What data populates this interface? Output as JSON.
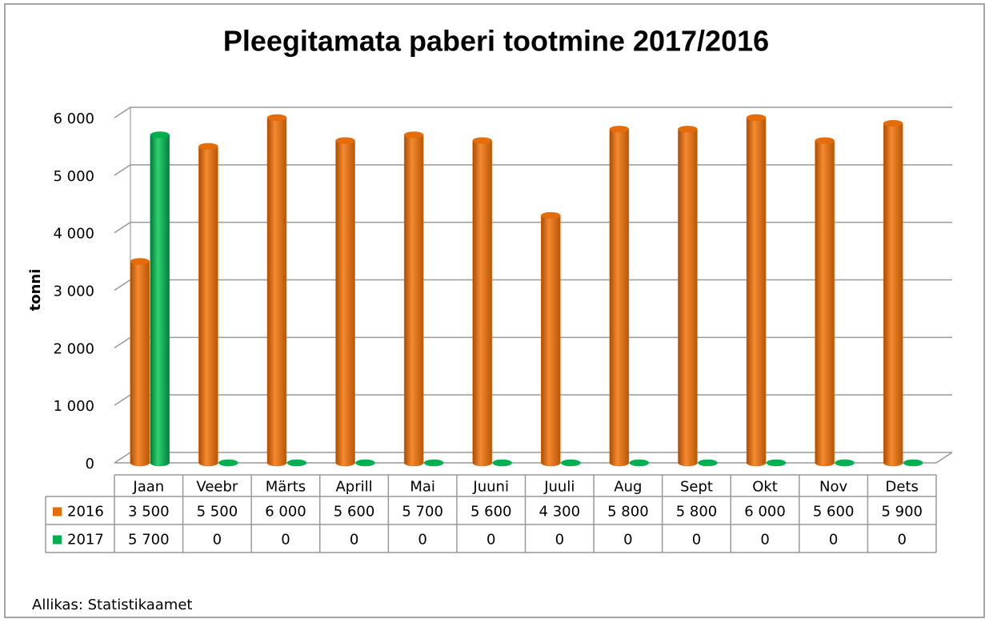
{
  "chart_data": {
    "type": "bar",
    "title": "Pleegitamata paberi tootmine 2017/2016",
    "y_label": "tonni",
    "source": "Allikas: Statistikaamet",
    "categories": [
      "Jaan",
      "Veebr",
      "Märts",
      "Aprill",
      "Mai",
      "Juuni",
      "Juuli",
      "Aug",
      "Sept",
      "Okt",
      "Nov",
      "Dets"
    ],
    "series": [
      {
        "name": "2016",
        "color": "#e46c0a",
        "values": [
          3500,
          5500,
          6000,
          5600,
          5700,
          5600,
          4300,
          5800,
          5800,
          6000,
          5600,
          5900
        ],
        "value_labels": [
          "3 500",
          "5 500",
          "6 000",
          "5 600",
          "5 700",
          "5 600",
          "4 300",
          "5 800",
          "5 800",
          "6 000",
          "5 600",
          "5 900"
        ]
      },
      {
        "name": "2017",
        "color": "#00b050",
        "values": [
          5700,
          0,
          0,
          0,
          0,
          0,
          0,
          0,
          0,
          0,
          0,
          0
        ],
        "value_labels": [
          "5 700",
          "0",
          "0",
          "0",
          "0",
          "0",
          "0",
          "0",
          "0",
          "0",
          "0",
          "0"
        ]
      }
    ],
    "ylim": [
      0,
      6000
    ],
    "yticks": [
      0,
      {
        "value": 1000,
        "label": "1 000"
      },
      {
        "value": 2000,
        "label": "2 000"
      },
      {
        "value": 3000,
        "label": "3 000"
      },
      {
        "value": 4000,
        "label": "4 000"
      },
      {
        "value": 5000,
        "label": "5 000"
      },
      {
        "value": 6000,
        "label": "6 000"
      }
    ],
    "grid": true
  }
}
